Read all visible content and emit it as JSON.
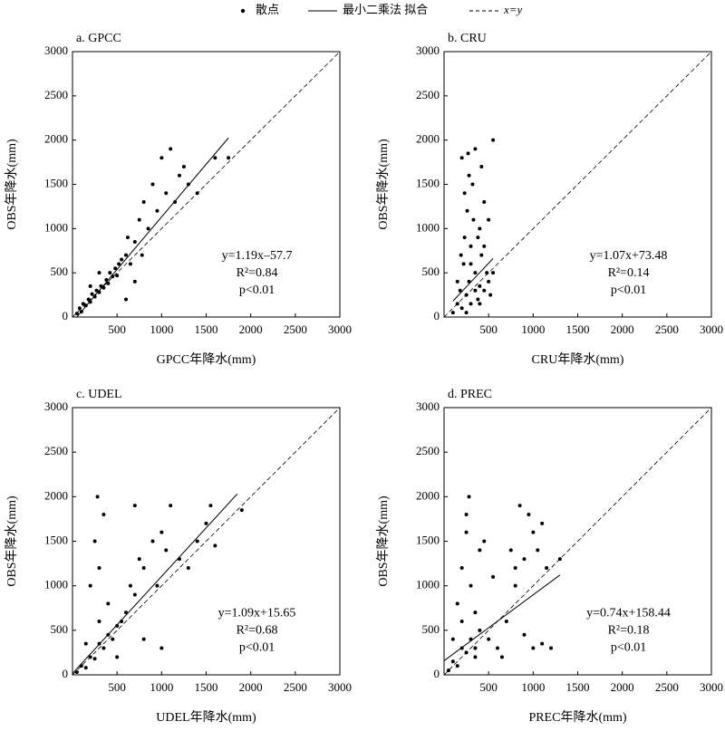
{
  "legend": [
    "散点",
    "最小二乘法 拟合",
    "x=y"
  ],
  "chart_data": [
    {
      "type": "scatter",
      "title": "a. GPCC",
      "xlabel": "GPCC年降水(mm)",
      "ylabel": "OBS年降水(mm)",
      "color": "#000000",
      "xlim": [
        0,
        3000
      ],
      "ylim": [
        0,
        3000
      ],
      "xticks": [
        500,
        1000,
        1500,
        2000,
        2500,
        3000
      ],
      "yticks": [
        0,
        500,
        1000,
        1500,
        2000,
        2500,
        3000
      ],
      "annotations": [
        "y=1.19x–57.7",
        "R²=0.84",
        "p<0.01"
      ],
      "fit": {
        "slope": 1.19,
        "intercept": -57.7,
        "xrange": [
          50,
          1750
        ]
      },
      "x": [
        50,
        80,
        100,
        120,
        150,
        180,
        200,
        220,
        250,
        270,
        300,
        320,
        350,
        380,
        400,
        420,
        450,
        480,
        500,
        520,
        550,
        600,
        620,
        650,
        700,
        750,
        780,
        800,
        850,
        900,
        950,
        1000,
        1050,
        1100,
        1150,
        1200,
        1250,
        1300,
        1400,
        1600,
        1750,
        600,
        700,
        300,
        200
      ],
      "y": [
        40,
        100,
        60,
        150,
        130,
        200,
        170,
        260,
        230,
        300,
        280,
        350,
        330,
        420,
        380,
        500,
        460,
        550,
        470,
        600,
        650,
        700,
        900,
        600,
        850,
        1100,
        700,
        1300,
        1000,
        1500,
        1200,
        1800,
        1400,
        1900,
        1300,
        1600,
        1700,
        1500,
        1400,
        1800,
        1800,
        200,
        400,
        500,
        350
      ]
    },
    {
      "type": "scatter",
      "title": "b. CRU",
      "xlabel": "CRU年降水(mm)",
      "ylabel": "OBS年降水(mm)",
      "color": "#000000",
      "xlim": [
        0,
        3000
      ],
      "ylim": [
        0,
        3000
      ],
      "xticks": [
        500,
        1000,
        1500,
        2000,
        2500,
        3000
      ],
      "yticks": [
        0,
        500,
        1000,
        1500,
        2000,
        2500,
        3000
      ],
      "annotations": [
        "y=1.07x+73.48",
        "R²=0.14",
        "p<0.01"
      ],
      "fit": {
        "slope": 1.07,
        "intercept": 73.48,
        "xrange": [
          100,
          550
        ]
      },
      "x": [
        100,
        150,
        180,
        200,
        220,
        250,
        260,
        280,
        300,
        300,
        320,
        350,
        350,
        380,
        400,
        400,
        420,
        450,
        450,
        480,
        500,
        520,
        550,
        550,
        200,
        230,
        270,
        330,
        380,
        420,
        150,
        190,
        250,
        300,
        350,
        400,
        450,
        500,
        280,
        230
      ],
      "y": [
        50,
        150,
        300,
        100,
        600,
        250,
        1200,
        400,
        800,
        150,
        1500,
        500,
        1900,
        200,
        350,
        1000,
        700,
        300,
        1300,
        500,
        400,
        250,
        2000,
        500,
        1800,
        1400,
        1850,
        1100,
        900,
        1700,
        400,
        700,
        50,
        600,
        300,
        150,
        800,
        1100,
        1600,
        900
      ]
    },
    {
      "type": "scatter",
      "title": "c. UDEL",
      "xlabel": "UDEL年降水(mm)",
      "ylabel": "OBS年降水(mm)",
      "color": "#000000",
      "xlim": [
        0,
        3000
      ],
      "ylim": [
        0,
        3000
      ],
      "xticks": [
        500,
        1000,
        1500,
        2000,
        2500,
        3000
      ],
      "yticks": [
        0,
        500,
        1000,
        1500,
        2000,
        2500,
        3000
      ],
      "annotations": [
        "y=1.09x+15.65",
        "R²=0.68",
        "p<0.01"
      ],
      "fit": {
        "slope": 1.09,
        "intercept": 15.65,
        "xrange": [
          0,
          1850
        ]
      },
      "x": [
        50,
        100,
        150,
        200,
        250,
        300,
        350,
        400,
        450,
        500,
        550,
        200,
        250,
        280,
        300,
        350,
        400,
        600,
        650,
        700,
        750,
        800,
        900,
        950,
        1000,
        1050,
        1100,
        1200,
        1300,
        1400,
        1500,
        1600,
        1900,
        1550,
        800,
        1000,
        500,
        300,
        700,
        150
      ],
      "y": [
        30,
        100,
        80,
        200,
        180,
        350,
        300,
        450,
        400,
        550,
        600,
        1000,
        1500,
        2000,
        1200,
        1800,
        800,
        700,
        1000,
        900,
        1300,
        1200,
        1500,
        1000,
        1600,
        1400,
        1900,
        1300,
        1200,
        1500,
        1700,
        1450,
        1850,
        1900,
        400,
        300,
        200,
        600,
        1900,
        350
      ]
    },
    {
      "type": "scatter",
      "title": "d. PREC",
      "xlabel": "PREC年降水(mm)",
      "ylabel": "OBS年降水(mm)",
      "color": "#000000",
      "xlim": [
        0,
        3000
      ],
      "ylim": [
        0,
        3000
      ],
      "xticks": [
        500,
        1000,
        1500,
        2000,
        2500,
        3000
      ],
      "yticks": [
        0,
        500,
        1000,
        1500,
        2000,
        2500,
        3000
      ],
      "annotations": [
        "y=0.74x+158.44",
        "R²=0.18",
        "p<0.01"
      ],
      "fit": {
        "slope": 0.74,
        "intercept": 158.44,
        "xrange": [
          0,
          1300
        ]
      },
      "x": [
        50,
        100,
        150,
        200,
        250,
        300,
        350,
        400,
        150,
        200,
        250,
        280,
        300,
        350,
        400,
        200,
        250,
        500,
        600,
        700,
        750,
        800,
        850,
        900,
        950,
        1000,
        1050,
        1100,
        1000,
        1100,
        900,
        1200,
        800,
        550,
        450,
        100,
        350,
        650,
        1150,
        1300
      ],
      "y": [
        50,
        150,
        100,
        300,
        250,
        400,
        300,
        500,
        800,
        1200,
        1600,
        2000,
        1000,
        700,
        1400,
        600,
        1800,
        400,
        300,
        600,
        1400,
        1200,
        1900,
        1300,
        1800,
        1600,
        1400,
        1700,
        300,
        350,
        450,
        300,
        1000,
        1100,
        1500,
        400,
        200,
        200,
        1200,
        1300
      ]
    }
  ]
}
